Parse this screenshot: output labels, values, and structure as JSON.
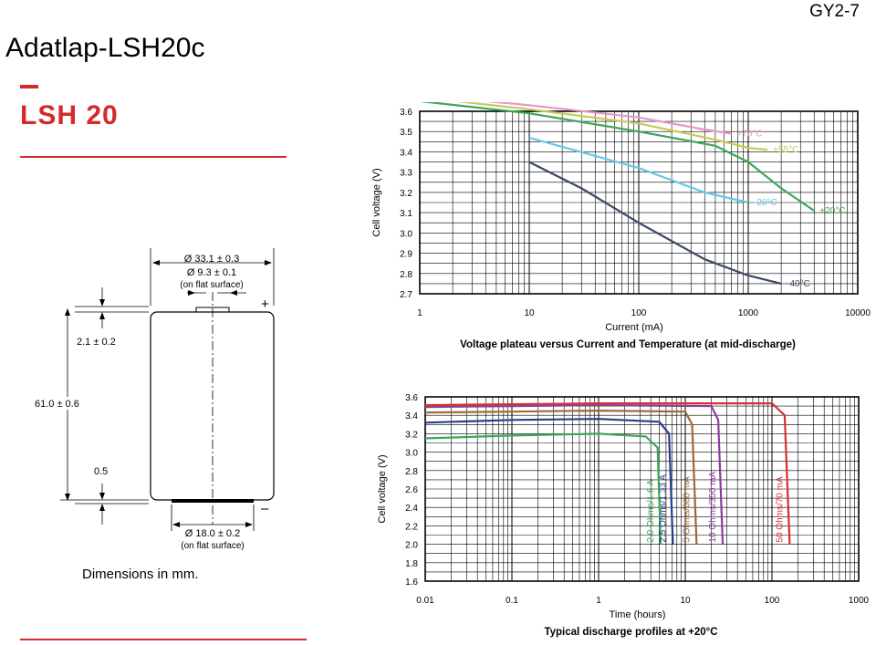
{
  "header": {
    "doc_code": "GY2-7",
    "page_title": "Adatlap-LSH20c",
    "model": "LSH 20"
  },
  "drawing": {
    "dim_outer_diameter": "Ø 33.1 ± 0.3",
    "dim_terminal_diameter": "Ø 9.3 ± 0.1",
    "dim_terminal_note": "(on flat surface)",
    "dim_top_height": "2.1 ± 0.2",
    "dim_total_height": "61.0 ± 0.6",
    "dim_bottom": "0.5",
    "dim_base_diameter": "Ø 18.0 ± 0.2",
    "dim_base_note": "(on flat surface)",
    "plus_sign": "+",
    "minus_sign": "–",
    "caption": "Dimensions in mm."
  },
  "colors": {
    "brand_red": "#d42a2a"
  },
  "chart_data": [
    {
      "type": "line",
      "title": "Voltage plateau versus Current and Temperature (at mid-discharge)",
      "xlabel": "Current (mA)",
      "ylabel": "Cell voltage (V)",
      "x_scale": "log",
      "xlim": [
        1,
        10000
      ],
      "ylim": [
        2.7,
        3.6
      ],
      "x_ticks": [
        "1",
        "10",
        "100",
        "1000",
        "10000"
      ],
      "y_ticks": [
        "3.6",
        "3.5",
        "3.4",
        "3.3",
        "3.2",
        "3.1",
        "3.0",
        "2.9",
        "2.8",
        "2.7"
      ],
      "grid": true,
      "series": [
        {
          "name": "+70°C",
          "color": "#e896c4",
          "points": [
            [
              1,
              3.68
            ],
            [
              10,
              3.63
            ],
            [
              100,
              3.57
            ],
            [
              400,
              3.51
            ],
            [
              700,
              3.49
            ]
          ]
        },
        {
          "name": "+55°C",
          "color": "#c9c95a",
          "points": [
            [
              1,
              3.67
            ],
            [
              10,
              3.61
            ],
            [
              100,
              3.54
            ],
            [
              500,
              3.46
            ],
            [
              1000,
              3.42
            ],
            [
              1500,
              3.41
            ]
          ]
        },
        {
          "name": "+20°C",
          "color": "#3aa858",
          "points": [
            [
              1,
              3.65
            ],
            [
              10,
              3.59
            ],
            [
              100,
              3.5
            ],
            [
              500,
              3.43
            ],
            [
              1000,
              3.35
            ],
            [
              2000,
              3.22
            ],
            [
              4000,
              3.11
            ]
          ]
        },
        {
          "name": "-20°C",
          "color": "#66c8e8",
          "points": [
            [
              10,
              3.47
            ],
            [
              100,
              3.32
            ],
            [
              400,
              3.2
            ],
            [
              1000,
              3.15
            ]
          ]
        },
        {
          "name": "-40°C",
          "color": "#3b4a66",
          "points": [
            [
              10,
              3.35
            ],
            [
              30,
              3.22
            ],
            [
              100,
              3.05
            ],
            [
              400,
              2.87
            ],
            [
              1000,
              2.79
            ],
            [
              2000,
              2.75
            ]
          ]
        }
      ]
    },
    {
      "type": "line",
      "title": "Typical discharge profiles at +20°C",
      "xlabel": "Time (hours)",
      "ylabel": "Cell voltage (V)",
      "x_scale": "log",
      "xlim": [
        0.01,
        1000
      ],
      "ylim": [
        1.6,
        3.6
      ],
      "x_ticks": [
        "0.01",
        "0.1",
        "1",
        "10",
        "100",
        "1000"
      ],
      "y_ticks": [
        "3.6",
        "3.4",
        "3.2",
        "3.0",
        "2.8",
        "2.6",
        "2.4",
        "2.2",
        "2.0",
        "1.8",
        "1.6"
      ],
      "grid": true,
      "series": [
        {
          "name": "2.0 Ohms/1.6 A",
          "color": "#3aa858",
          "points": [
            [
              0.01,
              3.15
            ],
            [
              0.1,
              3.18
            ],
            [
              1,
              3.2
            ],
            [
              3.5,
              3.17
            ],
            [
              4.8,
              3.05
            ],
            [
              5.2,
              2.0
            ]
          ]
        },
        {
          "name": "2.5 Ohms/1.33 A",
          "color": "#2b3e8a",
          "points": [
            [
              0.01,
              3.32
            ],
            [
              0.1,
              3.35
            ],
            [
              1,
              3.36
            ],
            [
              5,
              3.33
            ],
            [
              6.5,
              3.2
            ],
            [
              7.2,
              2.0
            ]
          ]
        },
        {
          "name": "5 Ohms/680 mA",
          "color": "#9e6a34",
          "points": [
            [
              0.01,
              3.43
            ],
            [
              0.1,
              3.44
            ],
            [
              1,
              3.45
            ],
            [
              10,
              3.44
            ],
            [
              12,
              3.3
            ],
            [
              13.5,
              2.0
            ]
          ]
        },
        {
          "name": "10 Ohms/350 mA",
          "color": "#8a3e9e",
          "points": [
            [
              0.01,
              3.49
            ],
            [
              0.1,
              3.5
            ],
            [
              1,
              3.51
            ],
            [
              20,
              3.5
            ],
            [
              24,
              3.35
            ],
            [
              27,
              2.0
            ]
          ]
        },
        {
          "name": "50 Ohms/70 mA",
          "color": "#d63030",
          "points": [
            [
              0.01,
              3.51
            ],
            [
              0.1,
              3.52
            ],
            [
              1,
              3.53
            ],
            [
              100,
              3.53
            ],
            [
              140,
              3.4
            ],
            [
              160,
              2.0
            ]
          ]
        }
      ]
    }
  ]
}
